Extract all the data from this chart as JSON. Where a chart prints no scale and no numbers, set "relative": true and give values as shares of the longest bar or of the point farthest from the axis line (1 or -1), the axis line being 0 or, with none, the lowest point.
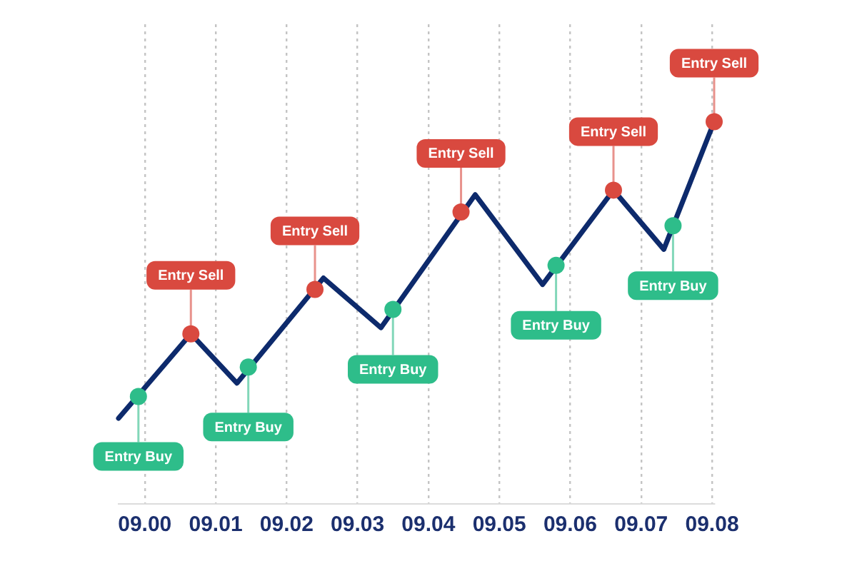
{
  "chart_data": {
    "type": "line",
    "relative": true,
    "grid": "x",
    "xlim": [
      8.9963,
      9.0803
    ],
    "xticks": [
      {
        "value": 9,
        "label": "09.00"
      },
      {
        "value": 9.01,
        "label": "09.01"
      },
      {
        "value": 9.02,
        "label": "09.02"
      },
      {
        "value": 9.03,
        "label": "09.03"
      },
      {
        "value": 9.04,
        "label": "09.04"
      },
      {
        "value": 9.05,
        "label": "09.05"
      },
      {
        "value": 9.06,
        "label": "09.06"
      },
      {
        "value": 9.07,
        "label": "09.07"
      },
      {
        "value": 9.08,
        "label": "09.08"
      }
    ],
    "series": [
      {
        "type": "line",
        "color": "#0d2a6c",
        "marker": "none",
        "x": [
          8.9963,
          9.0065,
          9.013,
          9.0252,
          9.0333,
          9.0466,
          9.0561,
          9.0661,
          9.0732,
          9.0803
        ],
        "values": [
          0.224,
          0.445,
          0.316,
          0.591,
          0.461,
          0.809,
          0.574,
          0.821,
          0.666,
          1
        ]
      },
      {
        "type": "scatter",
        "color": "#2ebd8a",
        "marker": "circle",
        "x": [
          8.9991,
          9.0146,
          9.035,
          9.058,
          9.0745
        ],
        "values": [
          0.281,
          0.358,
          0.509,
          0.624,
          0.728
        ]
      },
      {
        "type": "scatter",
        "color": "#d9493f",
        "marker": "circle",
        "x": [
          9.0065,
          9.024,
          9.0446,
          9.0661,
          9.0803
        ],
        "values": [
          0.445,
          0.561,
          0.764,
          0.821,
          1
        ]
      }
    ],
    "annotations": [
      {
        "text": "Entry Buy",
        "x": 8.9991,
        "y": 0.281
      },
      {
        "text": "Entry Sell",
        "x": 9.0065,
        "y": 0.445
      },
      {
        "text": "Entry Buy",
        "x": 9.0146,
        "y": 0.358
      },
      {
        "text": "Entry Sell",
        "x": 9.024,
        "y": 0.561
      },
      {
        "text": "Entry Buy",
        "x": 9.035,
        "y": 0.509
      },
      {
        "text": "Entry Sell",
        "x": 9.0446,
        "y": 0.764
      },
      {
        "text": "Entry Buy",
        "x": 9.058,
        "y": 0.624
      },
      {
        "text": "Entry Sell",
        "x": 9.0661,
        "y": 0.821
      },
      {
        "text": "Entry Buy",
        "x": 9.0745,
        "y": 0.728
      },
      {
        "text": "Entry Sell",
        "x": 9.0803,
        "y": 1
      }
    ]
  }
}
